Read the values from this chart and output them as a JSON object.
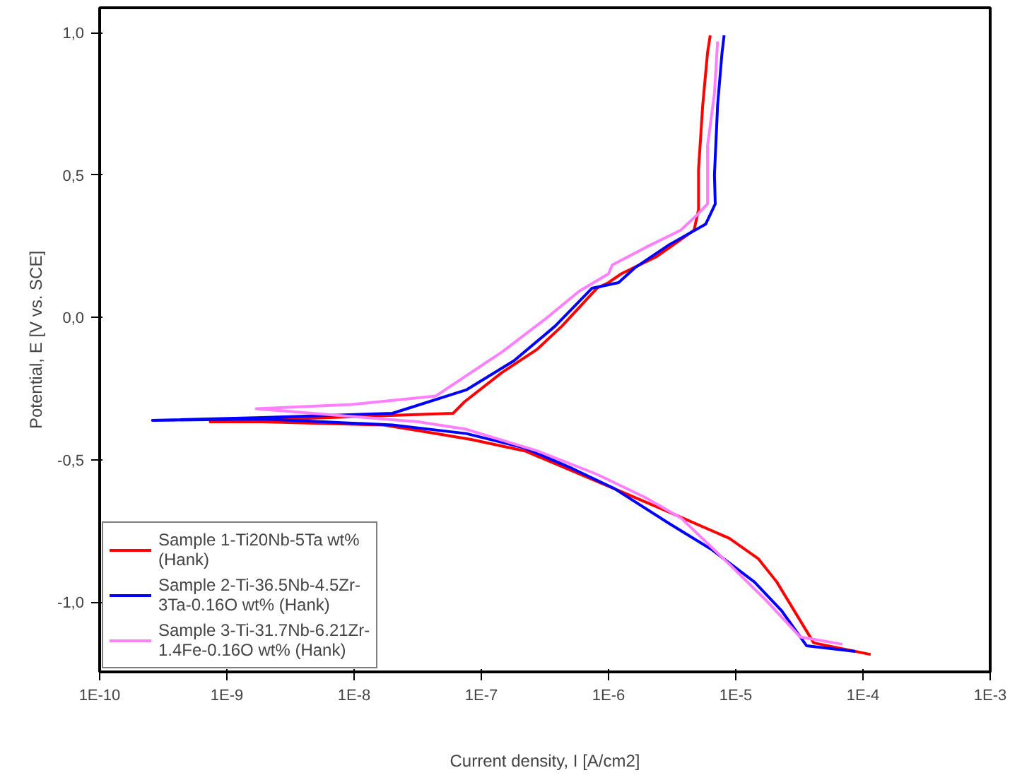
{
  "chart_data": {
    "type": "line",
    "xlabel": "Current density, I [A/cm2]",
    "ylabel": "Potential, E [V vs. SCE]",
    "log": "x",
    "grid": false,
    "legend": "bottom left",
    "line_style": "solid",
    "marker": "none",
    "xlim": [
      1e-10,
      0.001
    ],
    "ylim": [
      -1.245,
      1.087
    ],
    "xticks": [
      {
        "value": 1e-10,
        "label": "1E-10"
      },
      {
        "value": 1e-09,
        "label": "1E-9"
      },
      {
        "value": 1e-08,
        "label": "1E-8"
      },
      {
        "value": 1e-07,
        "label": "1E-7"
      },
      {
        "value": 1e-06,
        "label": "1E-6"
      },
      {
        "value": 1e-05,
        "label": "1E-5"
      },
      {
        "value": 0.0001,
        "label": "1E-4"
      },
      {
        "value": 0.001,
        "label": "1E-3"
      }
    ],
    "yticks": [
      {
        "value": -1.0,
        "label": "-1,0"
      },
      {
        "value": -0.5,
        "label": "-0,5"
      },
      {
        "value": 0.0,
        "label": "0,0"
      },
      {
        "value": 0.5,
        "label": "0,5"
      },
      {
        "value": 1.0,
        "label": "1,0"
      }
    ],
    "series": [
      {
        "name": "Sample 1-Ti20Nb-5Ta wt% (Hank)",
        "color": "#ff0000",
        "x": [
          0.000115,
          4.1e-05,
          2.1e-05,
          1.5e-05,
          8.9e-06,
          3e-06,
          1.26e-06,
          2.2e-07,
          8.3e-08,
          3.2e-08,
          1.7e-08,
          1.9e-09,
          7.4e-10,
          1.9e-09,
          6e-08,
          7.4e-08,
          1.45e-07,
          2.75e-07,
          4.3e-07,
          8.1e-07,
          1e-06,
          1.26e-06,
          2.4e-06,
          4.7e-06,
          5.1e-06,
          5.1e-06,
          5.5e-06,
          6e-06,
          6.3e-06
        ],
        "values": [
          -1.184,
          -1.143,
          -0.929,
          -0.847,
          -0.776,
          -0.684,
          -0.612,
          -0.469,
          -0.429,
          -0.398,
          -0.378,
          -0.367,
          -0.367,
          -0.36,
          -0.337,
          -0.296,
          -0.194,
          -0.112,
          -0.031,
          0.102,
          0.122,
          0.153,
          0.214,
          0.306,
          0.378,
          0.52,
          0.745,
          0.929,
          0.99
        ]
      },
      {
        "name": "Sample 2-Ti-36.5Nb-4.5Zr-3Ta-0.16O wt% (Hank)",
        "color": "#0000ff",
        "x": [
          8.7e-05,
          3.6e-05,
          2.3e-05,
          1.4e-05,
          6.5e-06,
          3e-06,
          1.12e-06,
          5.2e-07,
          2.2e-07,
          7.6e-08,
          2e-08,
          1.9e-09,
          2.6e-10,
          1.9e-09,
          2e-08,
          7.6e-08,
          1.8e-07,
          3.8e-07,
          7.4e-07,
          1.2e-06,
          1.6e-06,
          3e-06,
          5.8e-06,
          6.9e-06,
          6.8e-06,
          7.2e-06,
          7.8e-06,
          8.1e-06
        ],
        "values": [
          -1.173,
          -1.153,
          -1.031,
          -0.929,
          -0.816,
          -0.724,
          -0.602,
          -0.531,
          -0.459,
          -0.408,
          -0.378,
          -0.357,
          -0.362,
          -0.352,
          -0.337,
          -0.255,
          -0.153,
          -0.031,
          0.102,
          0.122,
          0.173,
          0.255,
          0.327,
          0.398,
          0.5,
          0.745,
          0.929,
          0.99
        ]
      },
      {
        "name": "Sample 3-Ti-31.7Nb-6.21Zr-1.4Fe-0.16O wt% (Hank)",
        "color": "#ff80ff",
        "x": [
          6.9e-05,
          3.2e-05,
          1.7e-05,
          8.9e-06,
          3.7e-06,
          1.95e-06,
          8.1e-07,
          2.75e-07,
          7.6e-08,
          3.2e-08,
          1.7e-09,
          9.5e-09,
          4.4e-08,
          8.3e-08,
          1.45e-07,
          3.1e-07,
          5.9e-07,
          1e-06,
          1.07e-06,
          1.95e-06,
          3.7e-06,
          4.9e-06,
          6e-06,
          6e-06,
          6.8e-06,
          7.2e-06
        ],
        "values": [
          -1.148,
          -1.122,
          -0.99,
          -0.867,
          -0.704,
          -0.633,
          -0.551,
          -0.469,
          -0.393,
          -0.367,
          -0.321,
          -0.306,
          -0.276,
          -0.194,
          -0.122,
          -0.01,
          0.092,
          0.153,
          0.184,
          0.245,
          0.306,
          0.357,
          0.398,
          0.602,
          0.786,
          0.969
        ]
      }
    ]
  }
}
